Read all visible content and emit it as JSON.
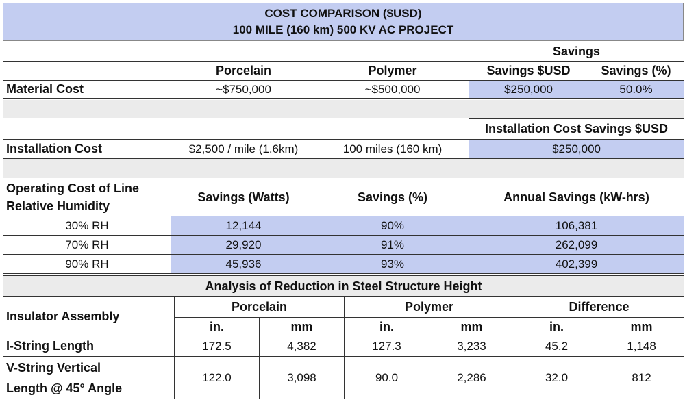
{
  "title": {
    "line1": "COST COMPARISON ($USD)",
    "line2": "100 MILE (160 km) 500 KV AC PROJECT"
  },
  "material": {
    "savings_header": "Savings",
    "col_porcelain": "Porcelain",
    "col_polymer": "Polymer",
    "col_savings_usd": "Savings $USD",
    "col_savings_pct": "Savings (%)",
    "row_label": "Material Cost",
    "porcelain": "~$750,000",
    "polymer": "~$500,000",
    "savings_usd": "$250,000",
    "savings_pct": "50.0%"
  },
  "installation": {
    "savings_header": "Installation Cost Savings $USD",
    "row_label": "Installation Cost",
    "rate": "$2,500 / mile (1.6km)",
    "distance": "100 miles (160 km)",
    "savings": "$250,000"
  },
  "operating": {
    "label_line1": "Operating Cost of Line",
    "label_line2": "Relative Humidity",
    "col_watts": "Savings (Watts)",
    "col_pct": "Savings (%)",
    "col_annual": "Annual Savings (kW-hrs)",
    "rows": [
      {
        "rh": "30% RH",
        "watts": "12,144",
        "pct": "90%",
        "annual": "106,381"
      },
      {
        "rh": "70% RH",
        "watts": "29,920",
        "pct": "91%",
        "annual": "262,099"
      },
      {
        "rh": "90% RH",
        "watts": "45,936",
        "pct": "93%",
        "annual": "402,399"
      }
    ]
  },
  "steel": {
    "title": "Analysis of Reduction in Steel Structure Height",
    "row_header": "Insulator Assembly",
    "groups": [
      "Porcelain",
      "Polymer",
      "Difference"
    ],
    "units": [
      "in.",
      "mm",
      "in.",
      "mm",
      "in.",
      "mm"
    ],
    "rows": [
      {
        "label": "I-String Length",
        "values": [
          "172.5",
          "4,382",
          "127.3",
          "3,233",
          "45.2",
          "1,148"
        ]
      },
      {
        "label_line1": "V-String Vertical",
        "label_line2": "Length @ 45° Angle",
        "values": [
          "122.0",
          "3,098",
          "90.0",
          "2,286",
          "32.0",
          "812"
        ]
      }
    ]
  },
  "colors": {
    "header_fill": "#c3cdf1",
    "highlight_fill": "#c3cdf1",
    "spacer_fill": "#ebebeb",
    "border": "#333333"
  }
}
